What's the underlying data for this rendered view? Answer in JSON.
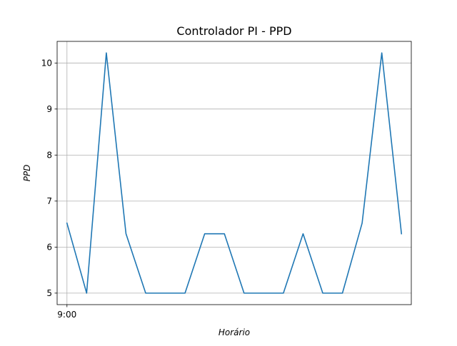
{
  "chart_data": {
    "type": "line",
    "title": "Controlador PI - PPD",
    "xlabel": "Horário",
    "ylabel": "PPD",
    "xlim": [
      -0.5,
      17.5
    ],
    "ylim": [
      4.75,
      10.47
    ],
    "x_ticks": [
      {
        "value": 0,
        "label": "9:00"
      }
    ],
    "y_ticks": [
      5,
      6,
      7,
      8,
      9,
      10
    ],
    "grid": true,
    "x": [
      0,
      1,
      2,
      3,
      4,
      5,
      6,
      7,
      8,
      9,
      10,
      11,
      12,
      13,
      14,
      15,
      16,
      17
    ],
    "series": [
      {
        "color": "#1f77b4",
        "values": [
          6.52,
          5.0,
          10.22,
          6.29,
          5.0,
          5.0,
          5.0,
          6.29,
          6.29,
          5.0,
          5.0,
          5.0,
          6.29,
          5.0,
          5.0,
          6.52,
          10.22,
          6.29
        ]
      }
    ]
  }
}
